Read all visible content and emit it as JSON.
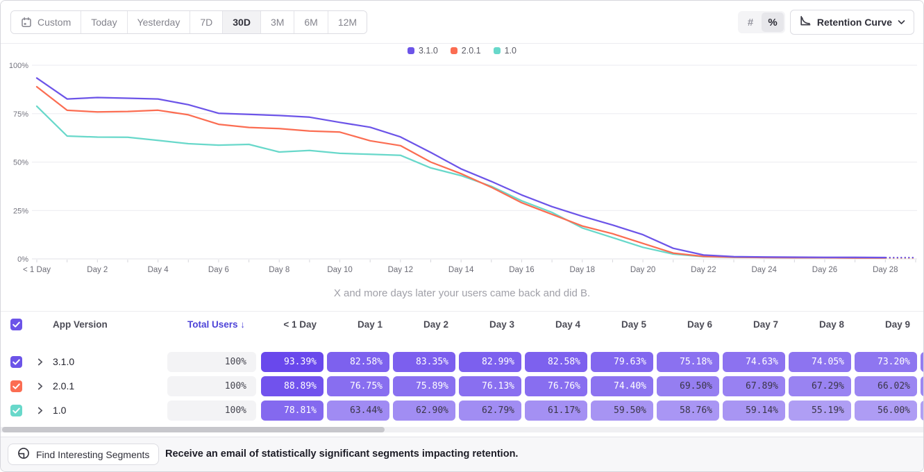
{
  "toolbar": {
    "date_ranges": [
      {
        "label": "Custom",
        "icon": "calendar-icon",
        "active": false
      },
      {
        "label": "Today",
        "active": false
      },
      {
        "label": "Yesterday",
        "active": false
      },
      {
        "label": "7D",
        "active": false
      },
      {
        "label": "30D",
        "active": true
      },
      {
        "label": "3M",
        "active": false
      },
      {
        "label": "6M",
        "active": false
      },
      {
        "label": "12M",
        "active": false
      }
    ],
    "value_mode": {
      "options": [
        {
          "label": "#",
          "selected": false
        },
        {
          "label": "%",
          "selected": true
        }
      ]
    },
    "chart_type": {
      "label": "Retention Curve",
      "icon": "retention-curve-icon"
    }
  },
  "chart_data": {
    "type": "line",
    "x_unit": "day",
    "x": [
      0,
      1,
      2,
      3,
      4,
      5,
      6,
      7,
      8,
      9,
      10,
      11,
      12,
      13,
      14,
      15,
      16,
      17,
      18,
      19,
      20,
      21,
      22,
      23,
      24,
      25,
      26,
      27,
      28,
      29
    ],
    "x_tick_labels": [
      "< 1 Day",
      "Day 2",
      "Day 4",
      "Day 6",
      "Day 8",
      "Day 10",
      "Day 12",
      "Day 14",
      "Day 16",
      "Day 18",
      "Day 20",
      "Day 22",
      "Day 24",
      "Day 26",
      "Day 28"
    ],
    "y_tick_labels": [
      "0%",
      "25%",
      "50%",
      "75%",
      "100%"
    ],
    "ylim": [
      0,
      100
    ],
    "grid": "horizontal",
    "legend_position": "top-center",
    "dashed_tail_from_day": 28,
    "caption": "X and more days later your users came back and did B.",
    "series": [
      {
        "name": "3.1.0",
        "color": "#6c54e8",
        "values": [
          93.39,
          82.58,
          83.35,
          82.99,
          82.58,
          79.63,
          75.18,
          74.63,
          74.05,
          73.2,
          70.5,
          68.0,
          63.0,
          55.0,
          46.5,
          40.0,
          33.0,
          27.0,
          22.0,
          17.5,
          12.5,
          5.5,
          2.0,
          1.2,
          1.0,
          0.9,
          0.8,
          0.8,
          0.7,
          0.7
        ]
      },
      {
        "name": "2.0.1",
        "color": "#fb6d52",
        "values": [
          88.89,
          76.75,
          75.89,
          76.13,
          76.76,
          74.4,
          69.5,
          67.89,
          67.29,
          66.02,
          65.5,
          61.0,
          58.5,
          50.0,
          44.0,
          37.0,
          29.0,
          23.0,
          17.0,
          13.0,
          8.0,
          3.0,
          1.3,
          0.9,
          0.7,
          0.6,
          0.6,
          0.5,
          0.5,
          0.5
        ]
      },
      {
        "name": "1.0",
        "color": "#68d8ca",
        "values": [
          78.81,
          63.44,
          62.9,
          62.79,
          61.17,
          59.5,
          58.76,
          59.14,
          55.19,
          56.0,
          54.5,
          54.0,
          53.5,
          47.0,
          43.0,
          37.5,
          30.0,
          24.0,
          16.0,
          11.0,
          6.0,
          2.5,
          1.2,
          0.8,
          0.7,
          0.6,
          0.6,
          0.5,
          0.5,
          0.5
        ]
      }
    ]
  },
  "table": {
    "select_all_checked": true,
    "headers": {
      "app_version": "App Version",
      "total_users": "Total Users",
      "sort_indicator": "↓",
      "day_cols": [
        "< 1 Day",
        "Day 1",
        "Day 2",
        "Day 3",
        "Day 4",
        "Day 5",
        "Day 6",
        "Day 7",
        "Day 8",
        "Day 9"
      ]
    },
    "rows": [
      {
        "version": "3.1.0",
        "checked": true,
        "checkbox_color": "#6c54e8",
        "total_users": "100%",
        "values": [
          93.39,
          82.58,
          83.35,
          82.99,
          82.58,
          79.63,
          75.18,
          74.63,
          74.05,
          73.2
        ]
      },
      {
        "version": "2.0.1",
        "checked": true,
        "checkbox_color": "#fb6d52",
        "total_users": "100%",
        "values": [
          88.89,
          76.75,
          75.89,
          76.13,
          76.76,
          74.4,
          69.5,
          67.89,
          67.29,
          66.02
        ]
      },
      {
        "version": "1.0",
        "checked": true,
        "checkbox_color": "#68d8ca",
        "total_users": "100%",
        "values": [
          78.81,
          63.44,
          62.9,
          62.79,
          61.17,
          59.5,
          58.76,
          59.14,
          55.19,
          56.0
        ]
      }
    ]
  },
  "footer": {
    "button_label": "Find Interesting Segments",
    "icon": "segments-icon",
    "message": "Receive an email of statistically significant segments impacting retention."
  }
}
